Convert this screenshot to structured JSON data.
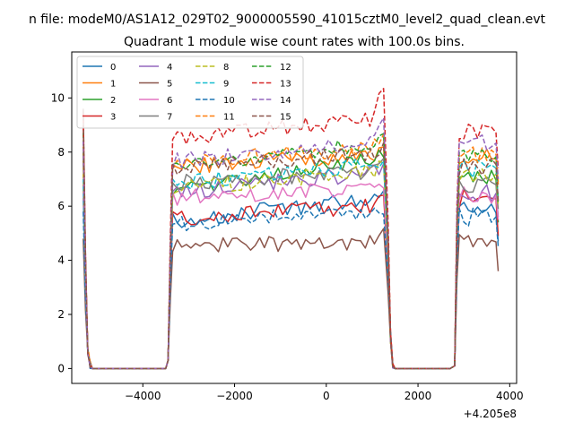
{
  "suptitle": "n file: modeM0/AS1A12_029T02_9000005590_41015cztM0_level2_quad_clean.evt",
  "chart_data": {
    "type": "line",
    "title": "Quadrant 1 module wise count rates with 100.0s bins.",
    "xlabel": "",
    "ylabel": "",
    "x_offset_label": "+4.205e8",
    "xlim": [
      -5550,
      4150
    ],
    "ylim": [
      -0.55,
      11.7
    ],
    "x_ticks": [
      -4000,
      -2000,
      0,
      2000,
      4000
    ],
    "x_tick_labels": [
      "−4000",
      "−2000",
      "0",
      "2000",
      "4000"
    ],
    "y_ticks": [
      0,
      2,
      4,
      6,
      8,
      10
    ],
    "y_tick_labels": [
      "0",
      "2",
      "4",
      "6",
      "8",
      "10"
    ],
    "legend_position": "top-left",
    "legend_columns": 4,
    "segments": [
      [
        -5300,
        -3450
      ],
      [
        -3450,
        1450
      ],
      [
        1450,
        2800
      ],
      [
        2800,
        3750
      ]
    ],
    "series": [
      {
        "name": "0",
        "color": "#1f77b4",
        "linestyle": "solid",
        "peak": 6.3,
        "level": 5.9,
        "slope": 0.9,
        "flare": 0.2,
        "after": 5.8,
        "end": 4.7
      },
      {
        "name": "1",
        "color": "#ff7f0e",
        "linestyle": "solid",
        "peak": 7.7,
        "level": 7.7,
        "slope": 0.5,
        "flare": 0.4,
        "after": 7.8,
        "end": 6.9
      },
      {
        "name": "2",
        "color": "#2ca02c",
        "linestyle": "solid",
        "peak": 8.0,
        "level": 7.2,
        "slope": 1.3,
        "flare": 0.3,
        "after": 7.0,
        "end": 5.4
      },
      {
        "name": "3",
        "color": "#d62728",
        "linestyle": "solid",
        "peak": 9.0,
        "level": 5.8,
        "slope": 0.5,
        "flare": 0.2,
        "after": 6.3,
        "end": 4.9
      },
      {
        "name": "4",
        "color": "#9467bd",
        "linestyle": "solid",
        "peak": 6.8,
        "level": 6.9,
        "slope": 0.8,
        "flare": 0.3,
        "after": 6.5,
        "end": 5.6
      },
      {
        "name": "5",
        "color": "#8c564b",
        "linestyle": "solid",
        "peak": 4.8,
        "level": 4.6,
        "slope": 0.2,
        "flare": 0.7,
        "after": 4.7,
        "end": 3.6
      },
      {
        "name": "6",
        "color": "#e377c2",
        "linestyle": "solid",
        "peak": 6.6,
        "level": 6.5,
        "slope": 0.4,
        "flare": 0.3,
        "after": 6.4,
        "end": 5.5
      },
      {
        "name": "7",
        "color": "#7f7f7f",
        "linestyle": "solid",
        "peak": 7.9,
        "level": 7.1,
        "slope": 0.5,
        "flare": 0.3,
        "after": 6.8,
        "end": 5.9
      },
      {
        "name": "8",
        "color": "#bcbd22",
        "linestyle": "dashed",
        "peak": 7.2,
        "level": 7.0,
        "slope": 0.7,
        "flare": 0.3,
        "after": 7.2,
        "end": 6.0
      },
      {
        "name": "9",
        "color": "#17becf",
        "linestyle": "dashed",
        "peak": 7.0,
        "level": 7.2,
        "slope": 0.8,
        "flare": 0.3,
        "after": 7.4,
        "end": 6.3
      },
      {
        "name": "10",
        "color": "#1f77b4",
        "linestyle": "dashed",
        "peak": 5.8,
        "level": 5.6,
        "slope": 0.5,
        "flare": 0.2,
        "after": 5.6,
        "end": 4.5
      },
      {
        "name": "11",
        "color": "#ff7f0e",
        "linestyle": "dashed",
        "peak": 8.2,
        "level": 7.9,
        "slope": 0.6,
        "flare": 0.4,
        "after": 7.9,
        "end": 6.8
      },
      {
        "name": "12",
        "color": "#2ca02c",
        "linestyle": "dashed",
        "peak": 8.7,
        "level": 7.9,
        "slope": 1.0,
        "flare": 0.4,
        "after": 7.8,
        "end": 6.1
      },
      {
        "name": "13",
        "color": "#d62728",
        "linestyle": "dashed",
        "peak": 9.5,
        "level": 8.9,
        "slope": 0.8,
        "flare": 1.5,
        "after": 8.7,
        "end": 7.4
      },
      {
        "name": "14",
        "color": "#9467bd",
        "linestyle": "dashed",
        "peak": 8.4,
        "level": 8.0,
        "slope": 0.7,
        "flare": 0.8,
        "after": 8.3,
        "end": 7.0
      },
      {
        "name": "15",
        "color": "#8c564b",
        "linestyle": "dashed",
        "peak": 9.6,
        "level": 7.7,
        "slope": 0.6,
        "flare": 0.3,
        "after": 7.5,
        "end": 6.2
      }
    ]
  }
}
